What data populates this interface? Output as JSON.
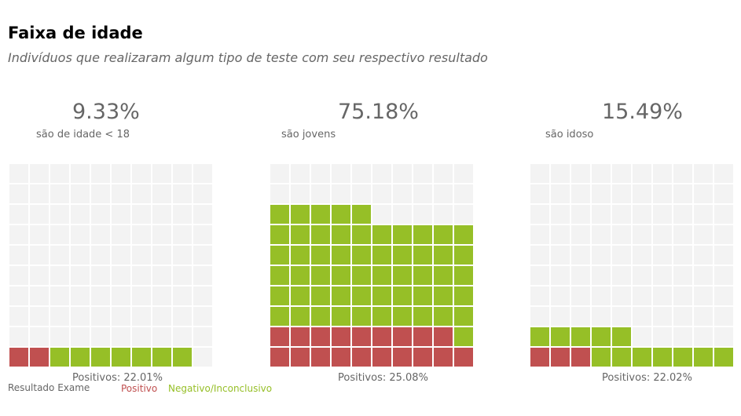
{
  "header": {
    "title": "Faixa de idade",
    "subtitle": "Indivíduos que realizaram algum tipo de teste com seu respectivo resultado"
  },
  "colors": {
    "positive": "#c05050",
    "negative": "#96bf27",
    "empty": "#f3f3f3"
  },
  "chart_data": [
    {
      "type": "waffle",
      "rows": 10,
      "cols": 10,
      "percent_label": "9.33%",
      "description": "são de idade < 18",
      "positive_label": "Positivos: 22.01%",
      "positive_cells": 2,
      "negative_cells": 7
    },
    {
      "type": "waffle",
      "rows": 10,
      "cols": 10,
      "percent_label": "75.18%",
      "description": "são jovens",
      "positive_label": "Positivos: 25.08%",
      "positive_cells": 19,
      "negative_cells": 56
    },
    {
      "type": "waffle",
      "rows": 10,
      "cols": 10,
      "percent_label": "15.49%",
      "description": "são idoso",
      "positive_label": "Positivos: 22.02%",
      "positive_cells": 3,
      "negative_cells": 12
    }
  ],
  "legend": {
    "title": "Resultado Exame",
    "items": [
      {
        "label": "Positivo",
        "color": "#c05050"
      },
      {
        "label": "Negativo/Inconclusivo",
        "color": "#96bf27"
      }
    ]
  }
}
